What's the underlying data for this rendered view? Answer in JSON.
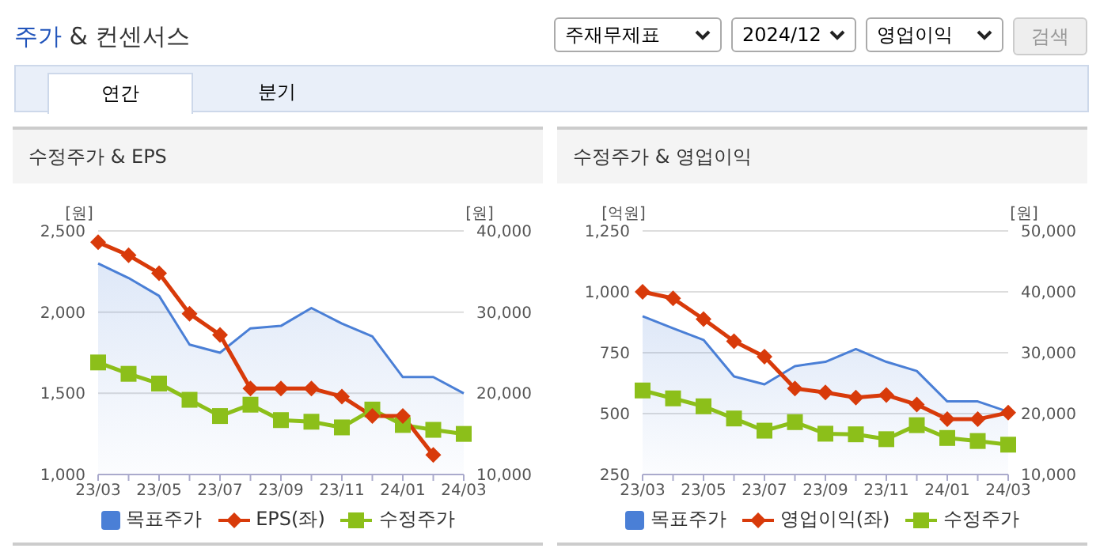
{
  "chart_data": [
    {
      "type": "other",
      "title": "주가 & 컨센서스",
      "annotations": [
        "주재무제표",
        "2024/12",
        "영업이익",
        "검색",
        "연간",
        "분기"
      ]
    },
    {
      "type": "line",
      "title": "수정주가 & EPS",
      "ylabel": "[원]",
      "y2label": "[원]",
      "categories": [
        "23/03",
        null,
        "23/05",
        null,
        "23/07",
        null,
        "23/09",
        null,
        "23/11",
        null,
        "24/01",
        null,
        "24/03"
      ],
      "series": [
        {
          "name": "목표주가",
          "type": "area",
          "axis": "y2",
          "color": "#4a7fd6",
          "marker": "none",
          "values": [
            36000,
            34200,
            32000,
            26000,
            25000,
            28000,
            28300,
            30500,
            28600,
            27000,
            22000,
            22000,
            20000
          ]
        },
        {
          "name": "EPS(좌)",
          "type": "line",
          "color": "#d83a0a",
          "marker": "diamond",
          "values": [
            2430,
            2350,
            2240,
            1990,
            1860,
            1530,
            1530,
            1530,
            1480,
            1360,
            1360,
            1120,
            null
          ]
        },
        {
          "name": "수정주가",
          "type": "line",
          "axis": "y2",
          "color": "#8cbf1a",
          "marker": "square",
          "values": [
            23800,
            22400,
            21200,
            19200,
            17200,
            18600,
            16700,
            16500,
            15800,
            18000,
            16100,
            15500,
            15000
          ]
        }
      ],
      "ylim": [
        1000,
        2500
      ],
      "yticks": [
        {
          "value": 1000,
          "label": "1,000"
        },
        {
          "value": 1500,
          "label": "1,500"
        },
        {
          "value": 2000,
          "label": "2,000"
        },
        {
          "value": 2500,
          "label": "2,500"
        }
      ],
      "y2lim": [
        10000,
        40000
      ],
      "y2ticks": [
        {
          "value": 10000,
          "label": "10,000"
        },
        {
          "value": 20000,
          "label": "20,000"
        },
        {
          "value": 30000,
          "label": "30,000"
        },
        {
          "value": 40000,
          "label": "40,000"
        }
      ],
      "grid": "y",
      "legend": "bottom"
    },
    {
      "type": "line",
      "title": "수정주가 & 영업이익",
      "ylabel": "[억원]",
      "y2label": "[원]",
      "categories": [
        "23/03",
        null,
        "23/05",
        null,
        "23/07",
        null,
        "23/09",
        null,
        "23/11",
        null,
        "24/01",
        null,
        "24/03"
      ],
      "series": [
        {
          "name": "목표주가",
          "type": "area",
          "axis": "y2",
          "color": "#4a7fd6",
          "marker": "none",
          "values": [
            36000,
            34000,
            32100,
            26100,
            24800,
            27800,
            28500,
            30600,
            28500,
            27000,
            22000,
            22000,
            20300
          ]
        },
        {
          "name": "영업이익(좌)",
          "type": "line",
          "color": "#d83a0a",
          "marker": "diamond",
          "values": [
            1000,
            973,
            888,
            797,
            734,
            603,
            587,
            566,
            576,
            537,
            477,
            477,
            504
          ]
        },
        {
          "name": "수정주가",
          "type": "line",
          "axis": "y2",
          "color": "#8cbf1a",
          "marker": "square",
          "values": [
            23800,
            22500,
            21200,
            19200,
            17200,
            18600,
            16700,
            16600,
            15800,
            18100,
            16000,
            15500,
            14900
          ]
        }
      ],
      "ylim": [
        250,
        1250
      ],
      "yticks": [
        250,
        500,
        750,
        {
          "value": 1000,
          "label": "1,000"
        },
        {
          "value": 1250,
          "label": "1,250"
        }
      ],
      "y2lim": [
        10000,
        50000
      ],
      "y2ticks": [
        {
          "value": 10000,
          "label": "10,000"
        },
        {
          "value": 20000,
          "label": "20,000"
        },
        {
          "value": 30000,
          "label": "30,000"
        },
        {
          "value": 40000,
          "label": "40,000"
        },
        {
          "value": 50000,
          "label": "50,000"
        }
      ],
      "grid": "y",
      "legend": "bottom"
    }
  ]
}
